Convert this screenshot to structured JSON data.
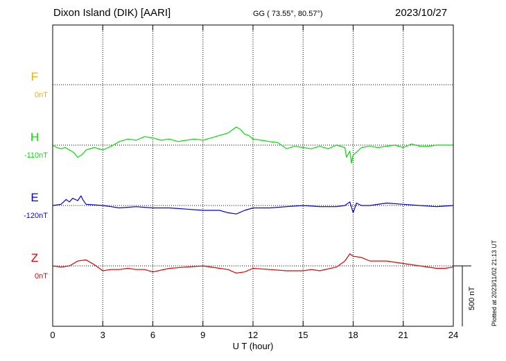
{
  "header": {
    "station": "Dixon Island (DIK)  [AARI]",
    "coords": "GG ( 73.55°,  80.57°)",
    "date": "2023/10/27"
  },
  "footer": {
    "plotted": "Plotted at 2023/11/02 21:13 UT"
  },
  "scale_label": "500 nT",
  "colors": {
    "F": "#f0b000",
    "H": "#00e000",
    "E": "#0000e0",
    "Z": "#e00000",
    "grid": "#000000"
  },
  "chart_data": {
    "type": "line",
    "xlabel": "U T (hour)",
    "xlim": [
      0,
      24
    ],
    "xticks": [
      "0",
      "3",
      "6",
      "9",
      "12",
      "15",
      "18",
      "21",
      "24"
    ],
    "ylabel": "",
    "scale_nT": 500,
    "series": [
      {
        "name": "F",
        "baseline_label": "0nT",
        "color": "#f0b000",
        "x": [],
        "values": []
      },
      {
        "name": "H",
        "baseline_label": "-110nT",
        "color": "#00e000",
        "x": [
          0,
          0.25,
          0.5,
          0.75,
          1.0,
          1.25,
          1.5,
          1.75,
          2.0,
          2.5,
          3.0,
          3.5,
          4.0,
          4.5,
          5.0,
          5.5,
          6.0,
          6.5,
          7.0,
          7.5,
          8.0,
          8.5,
          9.0,
          9.5,
          10.0,
          10.5,
          10.8,
          11.0,
          11.25,
          11.5,
          11.75,
          12.0,
          12.5,
          13.0,
          13.5,
          14.0,
          14.5,
          15.0,
          15.5,
          16.0,
          16.5,
          17.0,
          17.5,
          17.6,
          17.8,
          17.9,
          18.0,
          18.2,
          18.5,
          19.0,
          19.5,
          20.0,
          20.5,
          21.0,
          21.5,
          22.0,
          22.5,
          23.0,
          23.5,
          24.0
        ],
        "values": [
          0,
          -20,
          -30,
          -20,
          -40,
          -60,
          -100,
          -80,
          -40,
          -20,
          -40,
          -10,
          30,
          50,
          40,
          70,
          60,
          40,
          50,
          30,
          40,
          50,
          40,
          60,
          80,
          100,
          130,
          150,
          130,
          90,
          80,
          50,
          40,
          30,
          20,
          -30,
          -10,
          -20,
          -30,
          -10,
          -30,
          0,
          -20,
          -100,
          -50,
          -150,
          -80,
          -60,
          -20,
          -10,
          -20,
          -10,
          0,
          -20,
          10,
          -10,
          -10,
          0,
          0,
          0
        ]
      },
      {
        "name": "E",
        "baseline_label": "-120nT",
        "color": "#0000e0",
        "x": [
          0,
          0.5,
          0.8,
          1.0,
          1.2,
          1.5,
          1.7,
          1.8,
          2.0,
          3.0,
          3.5,
          4.0,
          5.0,
          6.0,
          7.0,
          8.0,
          9.0,
          10.0,
          10.5,
          11.0,
          11.5,
          12.0,
          13.0,
          14.0,
          15.0,
          16.0,
          17.0,
          17.5,
          17.8,
          18.0,
          18.2,
          18.5,
          19.0,
          20.0,
          21.0,
          22.0,
          23.0,
          24.0
        ],
        "values": [
          0,
          10,
          50,
          30,
          60,
          40,
          80,
          50,
          10,
          0,
          -10,
          -20,
          -10,
          -20,
          -20,
          -30,
          -40,
          -40,
          -60,
          -70,
          -40,
          -20,
          -20,
          -10,
          0,
          -10,
          -10,
          0,
          30,
          -60,
          20,
          0,
          0,
          20,
          10,
          0,
          -10,
          0
        ]
      },
      {
        "name": "Z",
        "baseline_label": "0nT",
        "color": "#e00000",
        "x": [
          0,
          0.5,
          1.0,
          1.5,
          2.0,
          2.5,
          3.0,
          3.5,
          4.0,
          4.5,
          5.0,
          5.5,
          6.0,
          7.0,
          8.0,
          9.0,
          10.0,
          10.5,
          11.0,
          11.5,
          12.0,
          13.0,
          14.0,
          15.0,
          15.5,
          16.0,
          17.0,
          17.5,
          17.8,
          18.0,
          18.5,
          19.0,
          20.0,
          21.0,
          22.0,
          23.0,
          23.5,
          24.0
        ],
        "values": [
          0,
          -10,
          0,
          40,
          50,
          10,
          -40,
          -30,
          -30,
          -20,
          -30,
          -30,
          -50,
          -20,
          -10,
          0,
          -20,
          -30,
          -60,
          -50,
          -20,
          -30,
          -40,
          -40,
          -30,
          -40,
          -10,
          40,
          100,
          80,
          70,
          40,
          40,
          20,
          0,
          -20,
          -20,
          -10
        ]
      }
    ]
  }
}
